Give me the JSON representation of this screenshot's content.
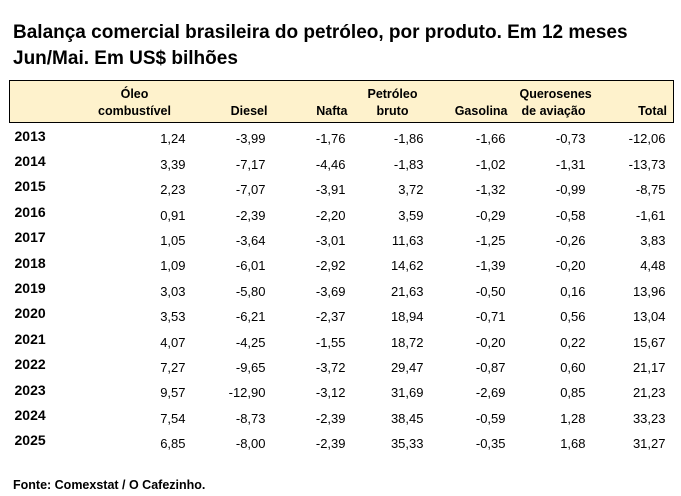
{
  "chart_data": {
    "type": "table",
    "title": "Balança comercial brasileira do petróleo, por produto. Em 12 meses Jun/Mai. Em US$ bilhões",
    "columns": [
      "",
      "Óleo combustível",
      "Diesel",
      "Nafta",
      "Petróleo bruto",
      "Gasolina",
      "Querosenes de aviação",
      "Total"
    ],
    "column_lines": [
      [
        ""
      ],
      [
        "Óleo",
        "combustível"
      ],
      [
        "Diesel"
      ],
      [
        "Nafta"
      ],
      [
        "Petróleo",
        "bruto"
      ],
      [
        "Gasolina"
      ],
      [
        "Querosenes",
        "de aviação"
      ],
      [
        "Total"
      ]
    ],
    "rows": [
      [
        "2013",
        "1,24",
        "-3,99",
        "-1,76",
        "-1,86",
        "-1,66",
        "-0,73",
        "-12,06"
      ],
      [
        "2014",
        "3,39",
        "-7,17",
        "-4,46",
        "-1,83",
        "-1,02",
        "-1,31",
        "-13,73"
      ],
      [
        "2015",
        "2,23",
        "-7,07",
        "-3,91",
        "3,72",
        "-1,32",
        "-0,99",
        "-8,75"
      ],
      [
        "2016",
        "0,91",
        "-2,39",
        "-2,20",
        "3,59",
        "-0,29",
        "-0,58",
        "-1,61"
      ],
      [
        "2017",
        "1,05",
        "-3,64",
        "-3,01",
        "11,63",
        "-1,25",
        "-0,26",
        "3,83"
      ],
      [
        "2018",
        "1,09",
        "-6,01",
        "-2,92",
        "14,62",
        "-1,39",
        "-0,20",
        "4,48"
      ],
      [
        "2019",
        "3,03",
        "-5,80",
        "-3,69",
        "21,63",
        "-0,50",
        "0,16",
        "13,96"
      ],
      [
        "2020",
        "3,53",
        "-6,21",
        "-2,37",
        "18,94",
        "-0,71",
        "0,56",
        "13,04"
      ],
      [
        "2021",
        "4,07",
        "-4,25",
        "-1,55",
        "18,72",
        "-0,20",
        "0,22",
        "15,67"
      ],
      [
        "2022",
        "7,27",
        "-9,65",
        "-3,72",
        "29,47",
        "-0,87",
        "0,60",
        "21,17"
      ],
      [
        "2023",
        "9,57",
        "-12,90",
        "-3,12",
        "31,69",
        "-2,69",
        "0,85",
        "21,23"
      ],
      [
        "2024",
        "7,54",
        "-8,73",
        "-2,39",
        "38,45",
        "-0,59",
        "1,28",
        "33,23"
      ],
      [
        "2025",
        "6,85",
        "-8,00",
        "-2,39",
        "35,33",
        "-0,35",
        "1,68",
        "31,27"
      ]
    ],
    "header_color": "#fef2cc"
  },
  "title_lines": [
    "Balança comercial brasileira do petróleo, por produto. Em 12 meses",
    "Jun/Mai. Em US$ bilhões"
  ],
  "source": "Fonte: Comexstat / O Cafezinho."
}
